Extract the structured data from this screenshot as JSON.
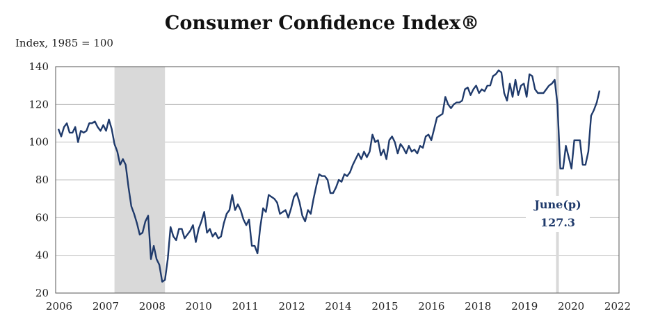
{
  "chart_data": {
    "type": "line",
    "title": "Consumer Confidence Index®",
    "ylabel": "Index, 1985 = 100",
    "xlabel": "",
    "ylim": [
      20,
      140
    ],
    "yticks": [
      20,
      40,
      60,
      80,
      100,
      120,
      140
    ],
    "xtick_labels": [
      "2006",
      "2007",
      "2008",
      "2010",
      "2011",
      "2012",
      "2014",
      "2015",
      "2016",
      "2018",
      "2019",
      "2020",
      "2022"
    ],
    "grid": true,
    "line_color": "#1f3a6b",
    "shade_color": "#d9d9d9",
    "recession_label": "",
    "series": [
      {
        "values": [
          107,
          103,
          108,
          110,
          105,
          105,
          108,
          100,
          106,
          105,
          106,
          110,
          110,
          111,
          108,
          106,
          109,
          106,
          112,
          107,
          99,
          95,
          88,
          91,
          88,
          76,
          66,
          62,
          57,
          51,
          52,
          58,
          61,
          38,
          45,
          38,
          35,
          26,
          27,
          38,
          55,
          50,
          48,
          54,
          54,
          49,
          51,
          53,
          56,
          47,
          54,
          58,
          63,
          52,
          54,
          50,
          52,
          49,
          50,
          57,
          62,
          64,
          72,
          64,
          67,
          64,
          59,
          56,
          59,
          45,
          45,
          41,
          55,
          65,
          63,
          72,
          71,
          70,
          68,
          62,
          63,
          64,
          60,
          65,
          71,
          73,
          68,
          61,
          58,
          64,
          62,
          70,
          77,
          83,
          82,
          82,
          80,
          73,
          73,
          76,
          80,
          79,
          83,
          82,
          84,
          88,
          91,
          94,
          91,
          95,
          92,
          95,
          104,
          100,
          101,
          93,
          96,
          91,
          101,
          103,
          100,
          94,
          99,
          97,
          94,
          98,
          95,
          96,
          94,
          98,
          97,
          103,
          104,
          101,
          107,
          113,
          114,
          115,
          124,
          120,
          118,
          120,
          121,
          121,
          122,
          128,
          129,
          125,
          128,
          130,
          126,
          128,
          127,
          130,
          130,
          135,
          136,
          138,
          137,
          126,
          122,
          131,
          124,
          133,
          125,
          130,
          131,
          124,
          136,
          135,
          128,
          126,
          126,
          126,
          128,
          130,
          131,
          133,
          120,
          86,
          86,
          98,
          92,
          86,
          101,
          101,
          101,
          88,
          88,
          95,
          114,
          117,
          121,
          127.3
        ]
      }
    ],
    "recession_shade_index": [
      20,
      38
    ],
    "covid_line_index": 178,
    "annotation": {
      "line1": "June(p)",
      "line2": "127.3"
    }
  }
}
